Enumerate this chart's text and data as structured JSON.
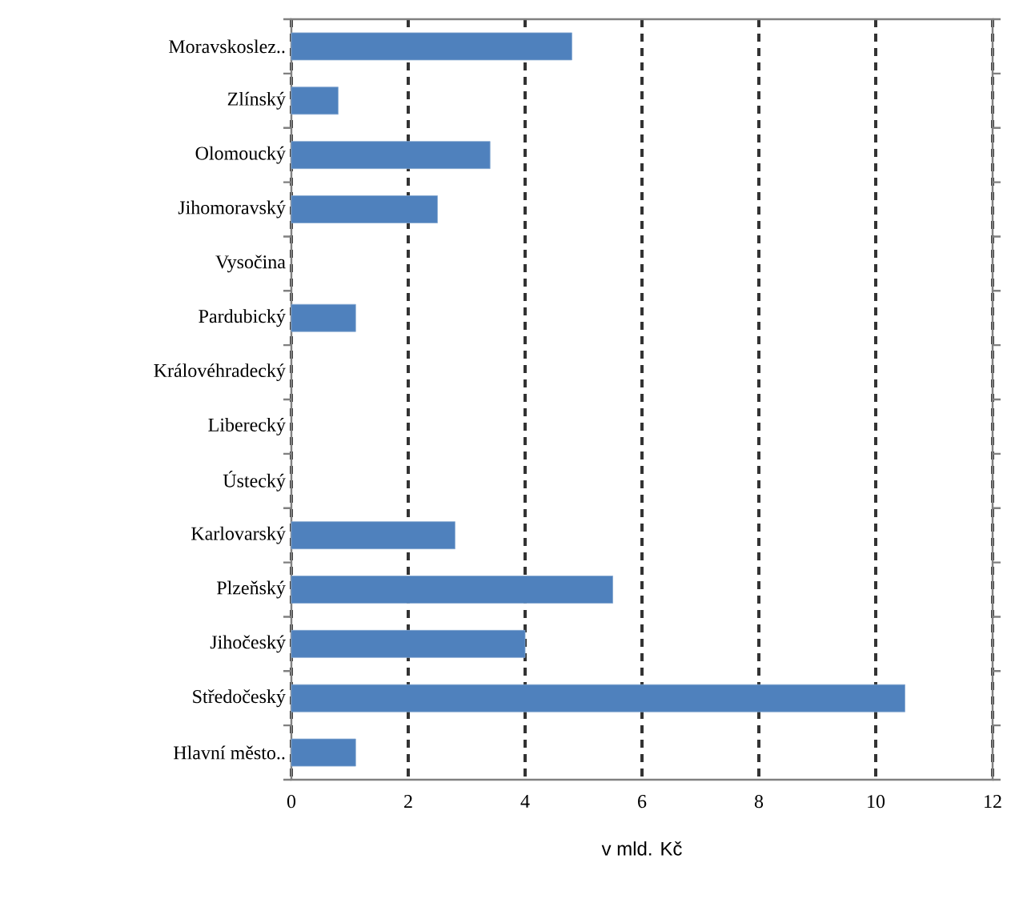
{
  "chart_data": {
    "type": "bar",
    "orientation": "horizontal",
    "xlabel": "v mld. Kč",
    "categories": [
      "Moravskoslez..",
      "Zlínský",
      "Olomoucký",
      "Jihomoravský",
      "Vysočina",
      "Pardubický",
      "Královéhradecký",
      "Liberecký",
      "Ústecký",
      "Karlovarský",
      "Plzeňský",
      "Jihočeský",
      "Středočeský",
      "Hlavní město.."
    ],
    "values": [
      4.8,
      0.8,
      3.4,
      2.5,
      null,
      1.1,
      null,
      null,
      null,
      2.8,
      5.5,
      4.0,
      10.5,
      1.1
    ],
    "color": "#4f81bd",
    "xlim": [
      0,
      12
    ],
    "xticks": [
      0,
      2,
      4,
      6,
      8,
      10,
      12
    ],
    "grid": "x"
  }
}
